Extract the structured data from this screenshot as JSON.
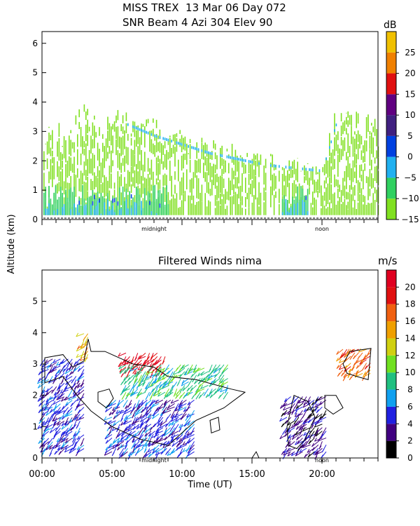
{
  "header": {
    "title_line1": "MISS TREX  13 Mar 06 Day 072",
    "title_line2": "SNR Beam 4 Azi 304 Elev 90"
  },
  "shared_axes": {
    "ylabel": "Altitude (km)",
    "xlabel": "Time (UT)",
    "time_tick_labels": [
      "00:00",
      "05:00",
      "10:00",
      "15:00",
      "20:00"
    ],
    "markers": [
      "midnight",
      "noon"
    ]
  },
  "colors": {
    "snr_bar": [
      "#80e020",
      "#30d060",
      "#20b0f0",
      "#0040e0",
      "#402080",
      "#600080",
      "#e01010",
      "#f08000",
      "#f0c000"
    ],
    "wind_bar": [
      "#000000",
      "#400080",
      "#2020e0",
      "#10a0f0",
      "#20c080",
      "#70e020",
      "#d0d010",
      "#f0a000",
      "#f06010",
      "#e01010",
      "#e00020"
    ]
  },
  "chart_data": [
    {
      "type": "heatmap",
      "panel": "snr",
      "title": "MISS TREX  13 Mar 06 Day 072 - SNR Beam 4 Azi 304 Elev 90",
      "x_unit": "hours UT",
      "xlim": [
        0,
        24
      ],
      "ylim": [
        0,
        6.4
      ],
      "yticks": [
        0,
        1,
        2,
        3,
        4,
        5,
        6
      ],
      "ytick_labels": [
        "0",
        "1",
        "2",
        "3",
        "4",
        "5",
        "6"
      ],
      "colorbar": {
        "unit": "dB",
        "range": [
          -15,
          30
        ],
        "ticks": [
          -15,
          -10,
          -5,
          0,
          5,
          10,
          15,
          20,
          25
        ],
        "tick_labels": [
          "−15",
          "−10",
          "−5",
          "0",
          "5",
          "10",
          "15",
          "20",
          "25"
        ]
      },
      "echo_top_km": [
        {
          "t": 0.5,
          "top": 2.8
        },
        {
          "t": 2,
          "top": 3.0
        },
        {
          "t": 3,
          "top": 3.7
        },
        {
          "t": 4,
          "top": 3.3
        },
        {
          "t": 6,
          "top": 3.4
        },
        {
          "t": 8,
          "top": 3.0
        },
        {
          "t": 10,
          "top": 2.7
        },
        {
          "t": 12,
          "top": 2.4
        },
        {
          "t": 14,
          "top": 2.2
        },
        {
          "t": 16,
          "top": 2.0
        },
        {
          "t": 18,
          "top": 1.9
        },
        {
          "t": 20,
          "top": 1.8
        },
        {
          "t": 21,
          "top": 3.4
        },
        {
          "t": 23.5,
          "top": 3.1
        }
      ],
      "max_snr_db": 6
    },
    {
      "type": "barbs",
      "panel": "winds",
      "title": "Filtered Winds nima",
      "x_unit": "hours UT",
      "xlim": [
        0,
        24
      ],
      "ylim": [
        0,
        6
      ],
      "yticks": [
        0,
        1,
        2,
        3,
        4,
        5
      ],
      "ytick_labels": [
        "0",
        "1",
        "2",
        "3",
        "4",
        "5"
      ],
      "colorbar": {
        "unit": "m/s",
        "range": [
          0,
          22
        ],
        "ticks": [
          0,
          2,
          4,
          6,
          8,
          10,
          12,
          14,
          16,
          18,
          20
        ],
        "tick_labels": [
          "0",
          "2",
          "4",
          "6",
          "8",
          "10",
          "12",
          "14",
          "16",
          "18",
          "20"
        ]
      },
      "wind_regions": [
        {
          "t_start": 0.2,
          "t_end": 3.2,
          "alt_bottom": 0.3,
          "alt_top": 3.2,
          "speed_ms": 4
        },
        {
          "t_start": 3.0,
          "t_end": 3.5,
          "alt_bottom": 3.2,
          "alt_top": 4.0,
          "speed_ms": 14
        },
        {
          "t_start": 6.0,
          "t_end": 9.0,
          "alt_bottom": 2.8,
          "alt_top": 3.4,
          "speed_ms": 19
        },
        {
          "t_start": 6.0,
          "t_end": 13.5,
          "alt_bottom": 2.1,
          "alt_top": 3.0,
          "speed_ms": 8
        },
        {
          "t_start": 5.0,
          "t_end": 11.0,
          "alt_bottom": 0.2,
          "alt_top": 1.9,
          "speed_ms": 4
        },
        {
          "t_start": 17.5,
          "t_end": 20.5,
          "alt_bottom": 0.2,
          "alt_top": 2.0,
          "speed_ms": 2
        },
        {
          "t_start": 21.5,
          "t_end": 23.5,
          "alt_bottom": 2.7,
          "alt_top": 3.5,
          "speed_ms": 16
        }
      ]
    }
  ]
}
